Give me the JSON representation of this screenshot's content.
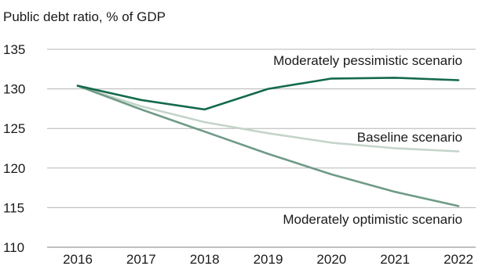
{
  "chart_data": {
    "type": "line",
    "title": "",
    "subtitle": "Public debt ratio, % of GDP",
    "xlabel": "",
    "ylabel": "",
    "categories": [
      "2016",
      "2017",
      "2018",
      "2019",
      "2020",
      "2021",
      "2022"
    ],
    "ylim": [
      110,
      135
    ],
    "yticks": [
      110,
      115,
      120,
      125,
      130,
      135
    ],
    "grid": true,
    "series": [
      {
        "name": "Moderately pessimistic scenario",
        "values": [
          130.4,
          128.6,
          127.4,
          130.0,
          131.3,
          131.4,
          131.1
        ],
        "color": "#136a4a"
      },
      {
        "name": "Baseline scenario",
        "values": [
          130.4,
          127.8,
          125.8,
          124.4,
          123.2,
          122.5,
          122.1
        ],
        "color": "#c4d4ca"
      },
      {
        "name": "Moderately optimistic scenario",
        "values": [
          130.4,
          127.4,
          124.6,
          121.8,
          119.2,
          117.0,
          115.2
        ],
        "color": "#6f9a86"
      }
    ]
  }
}
